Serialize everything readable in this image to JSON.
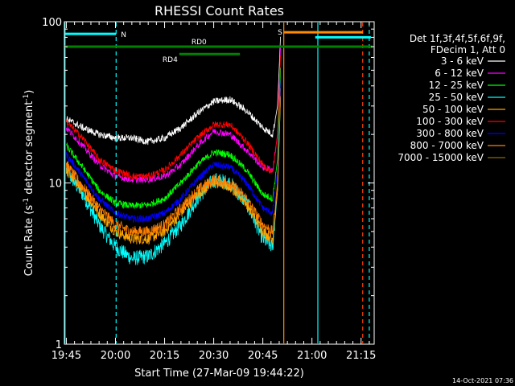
{
  "chart_data": {
    "type": "line",
    "title": "RHESSI Count Rates",
    "xlabel": "Start Time (27-Mar-09 19:44:22)",
    "ylabel_main": "Count Rate (s",
    "ylabel_sup": "-1",
    "ylabel_mid": " detector segment",
    "ylabel_sup2": "-1",
    "ylabel_end": ")",
    "ylog": true,
    "ylim": [
      1,
      100
    ],
    "y_ticks": [
      {
        "value": 1,
        "label": "1"
      },
      {
        "value": 10,
        "label": "10"
      },
      {
        "value": 100,
        "label": "100"
      }
    ],
    "xlim_minutes": [
      -0.6,
      94
    ],
    "x_ticks": [
      {
        "minute": 0,
        "label": "19:45"
      },
      {
        "minute": 15,
        "label": "20:00"
      },
      {
        "minute": 30,
        "label": "20:15"
      },
      {
        "minute": 45,
        "label": "20:30"
      },
      {
        "minute": 60,
        "label": "20:45"
      },
      {
        "minute": 75,
        "label": "21:00"
      },
      {
        "minute": 90,
        "label": "21:15"
      }
    ],
    "legend_header": [
      "Det 1f,3f,4f,5f,6f,9f,",
      "FDecim 1, Att 0"
    ],
    "legend_position": "right",
    "series": [
      {
        "name": "3 - 6 keV",
        "color": "#ffffff",
        "points": [
          [
            0,
            25
          ],
          [
            5,
            22
          ],
          [
            10,
            20
          ],
          [
            15,
            19
          ],
          [
            20,
            19
          ],
          [
            25,
            18
          ],
          [
            30,
            19
          ],
          [
            35,
            22
          ],
          [
            40,
            27
          ],
          [
            45,
            32
          ],
          [
            50,
            33
          ],
          [
            55,
            28
          ],
          [
            60,
            22
          ],
          [
            63,
            20
          ],
          [
            64.5,
            30
          ],
          [
            65.5,
            90
          ]
        ]
      },
      {
        "name": "6 - 12 keV",
        "color": "#ff00ff",
        "points": [
          [
            0,
            22
          ],
          [
            5,
            17
          ],
          [
            10,
            13
          ],
          [
            15,
            11
          ],
          [
            20,
            10.5
          ],
          [
            25,
            10.5
          ],
          [
            30,
            11
          ],
          [
            35,
            13
          ],
          [
            40,
            17
          ],
          [
            45,
            21
          ],
          [
            50,
            20
          ],
          [
            55,
            16
          ],
          [
            60,
            12.5
          ],
          [
            63,
            12
          ],
          [
            64.5,
            20
          ],
          [
            65.5,
            80
          ]
        ]
      },
      {
        "name": "12 - 25 keV",
        "color": "#00ff00",
        "points": [
          [
            0,
            17
          ],
          [
            5,
            12.5
          ],
          [
            10,
            9
          ],
          [
            15,
            7.5
          ],
          [
            20,
            7.2
          ],
          [
            25,
            7.3
          ],
          [
            30,
            8
          ],
          [
            35,
            10
          ],
          [
            40,
            13
          ],
          [
            45,
            15.5
          ],
          [
            50,
            15
          ],
          [
            55,
            12
          ],
          [
            60,
            8.5
          ],
          [
            63,
            8
          ],
          [
            64.5,
            14
          ],
          [
            65.5,
            60
          ]
        ]
      },
      {
        "name": "25 - 50 keV",
        "color": "#00ffff",
        "points": [
          [
            0,
            12
          ],
          [
            5,
            8.5
          ],
          [
            10,
            5.5
          ],
          [
            15,
            4
          ],
          [
            20,
            3.4
          ],
          [
            25,
            3.5
          ],
          [
            30,
            4.2
          ],
          [
            35,
            5.5
          ],
          [
            40,
            8
          ],
          [
            45,
            10.5
          ],
          [
            50,
            10
          ],
          [
            55,
            7.5
          ],
          [
            60,
            4.5
          ],
          [
            63,
            4
          ],
          [
            64.5,
            9
          ],
          [
            65.5,
            40
          ]
        ]
      },
      {
        "name": "50 - 100 keV",
        "color": "#ffa500",
        "points": [
          [
            0,
            12
          ],
          [
            5,
            9
          ],
          [
            10,
            6.5
          ],
          [
            15,
            5
          ],
          [
            20,
            4.5
          ],
          [
            25,
            4.5
          ],
          [
            30,
            5
          ],
          [
            35,
            6.5
          ],
          [
            40,
            8.5
          ],
          [
            45,
            10
          ],
          [
            50,
            9.5
          ],
          [
            55,
            7.5
          ],
          [
            60,
            5
          ],
          [
            63,
            4.5
          ],
          [
            64.5,
            9
          ],
          [
            65.5,
            40
          ]
        ]
      },
      {
        "name": "100 - 300 keV",
        "color": "#ff0000",
        "points": [
          [
            0,
            24
          ],
          [
            5,
            19
          ],
          [
            10,
            14
          ],
          [
            15,
            12
          ],
          [
            20,
            11
          ],
          [
            25,
            11
          ],
          [
            30,
            12
          ],
          [
            35,
            15
          ],
          [
            40,
            19
          ],
          [
            45,
            23
          ],
          [
            50,
            23
          ],
          [
            55,
            18
          ],
          [
            60,
            13
          ],
          [
            63,
            11.5
          ],
          [
            64.5,
            20
          ],
          [
            65.5,
            70
          ]
        ]
      },
      {
        "name": "300 - 800 keV",
        "color": "#0000ff",
        "points": [
          [
            0,
            15
          ],
          [
            5,
            11
          ],
          [
            10,
            8
          ],
          [
            15,
            6.5
          ],
          [
            20,
            6
          ],
          [
            25,
            6
          ],
          [
            30,
            6.5
          ],
          [
            35,
            8
          ],
          [
            40,
            10.5
          ],
          [
            45,
            13
          ],
          [
            50,
            12.5
          ],
          [
            55,
            10
          ],
          [
            60,
            7
          ],
          [
            63,
            6.5
          ],
          [
            64.5,
            12
          ],
          [
            65.5,
            50
          ]
        ]
      },
      {
        "name": "800 - 7000 keV",
        "color": "#ff7f00",
        "points": [
          [
            0,
            13
          ],
          [
            5,
            9.5
          ],
          [
            10,
            7
          ],
          [
            15,
            5.5
          ],
          [
            20,
            5
          ],
          [
            25,
            5
          ],
          [
            30,
            5.5
          ],
          [
            35,
            7
          ],
          [
            40,
            9
          ],
          [
            45,
            10.5
          ],
          [
            50,
            10
          ],
          [
            55,
            8
          ],
          [
            60,
            5.5
          ],
          [
            63,
            5
          ],
          [
            64.5,
            10
          ],
          [
            65.5,
            45
          ]
        ]
      },
      {
        "name": "7000 - 15000 keV",
        "color": "#8b6b00",
        "points": []
      }
    ],
    "flags": [
      {
        "label": "N",
        "color": "#00ffff",
        "start": -0.6,
        "end": 15.2,
        "value": 84
      },
      {
        "label": "S",
        "color": "#ff8c00",
        "start": 66.5,
        "end": 90.5,
        "value": 86
      },
      {
        "label": "",
        "color": "#00ffff",
        "start": 76,
        "end": 93,
        "value": 80
      },
      {
        "label": "RD0",
        "color": "#008000",
        "start": -0.6,
        "end": 93.5,
        "value": 70
      },
      {
        "label": "RD4",
        "color": "#008000",
        "start": 34.5,
        "end": 53,
        "value": 63
      }
    ],
    "markers": [
      {
        "minute": 15.2,
        "color": "#00ffff",
        "style": "dashed"
      },
      {
        "minute": 66.4,
        "color": "#ff8c00",
        "style": "solid"
      },
      {
        "minute": 76.8,
        "color": "#00ffff",
        "style": "solid"
      },
      {
        "minute": 90.5,
        "color": "#ff4500",
        "style": "dashed"
      },
      {
        "minute": 92.5,
        "color": "#00ffff",
        "style": "dashed"
      },
      {
        "minute": -0.4,
        "color": "#00ffff",
        "style": "solid"
      }
    ],
    "timestamp": "14-Oct-2021 07:36"
  }
}
